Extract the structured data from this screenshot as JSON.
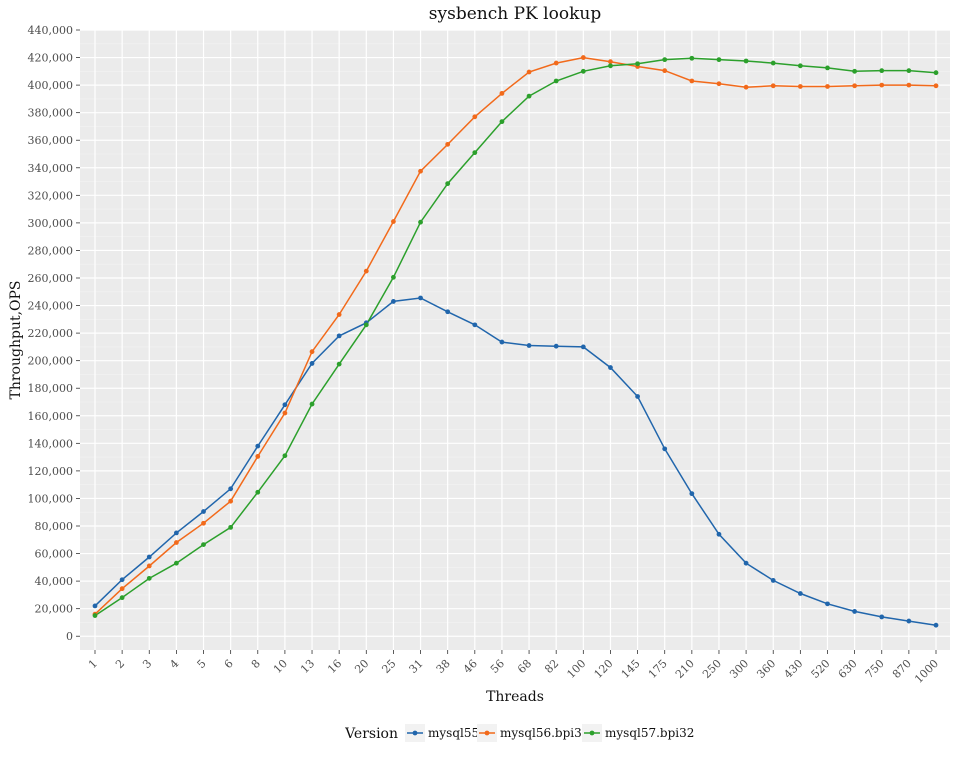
{
  "chart_data": {
    "type": "line",
    "title": "sysbench PK lookup",
    "xlabel": "Threads",
    "ylabel": "Throughput,OPS",
    "ylim": [
      -10000,
      440000
    ],
    "y_ticks": [
      0,
      20000,
      40000,
      60000,
      80000,
      100000,
      120000,
      140000,
      160000,
      180000,
      200000,
      220000,
      240000,
      260000,
      280000,
      300000,
      320000,
      340000,
      360000,
      380000,
      400000,
      420000,
      440000
    ],
    "y_tick_labels": [
      "0",
      "20,000",
      "40,000",
      "60,000",
      "80,000",
      "100,000",
      "120,000",
      "140,000",
      "160,000",
      "180,000",
      "200,000",
      "220,000",
      "240,000",
      "260,000",
      "280,000",
      "300,000",
      "320,000",
      "340,000",
      "360,000",
      "380,000",
      "400,000",
      "420,000",
      "440,000"
    ],
    "x_scale": "categorical",
    "categories": [
      "1",
      "2",
      "3",
      "4",
      "5",
      "6",
      "8",
      "10",
      "13",
      "16",
      "20",
      "25",
      "31",
      "38",
      "46",
      "56",
      "68",
      "82",
      "100",
      "120",
      "145",
      "175",
      "210",
      "250",
      "300",
      "360",
      "430",
      "520",
      "630",
      "750",
      "870",
      "1000"
    ],
    "grid": true,
    "legend": {
      "title": "Version",
      "position": "bottom"
    },
    "series": [
      {
        "name": "mysql55",
        "color": "#2166ac",
        "values": [
          22000,
          41000,
          57500,
          75000,
          90500,
          107000,
          138000,
          168000,
          198000,
          218000,
          227500,
          243000,
          245500,
          235500,
          226000,
          213500,
          211000,
          210500,
          210000,
          195000,
          174000,
          136000,
          103500,
          74000,
          53000,
          40500,
          31000,
          23500,
          18000,
          14000,
          11000,
          8000
        ]
      },
      {
        "name": "mysql56.bpi32",
        "color": "#f26a1b",
        "values": [
          16000,
          34500,
          51000,
          68000,
          82000,
          98000,
          130500,
          162000,
          206500,
          233500,
          265000,
          301000,
          337500,
          357000,
          377000,
          394000,
          409500,
          416000,
          420000,
          417000,
          413500,
          410500,
          403000,
          401000,
          398500,
          399500,
          399000,
          399000,
          399500,
          400000,
          400000,
          399500
        ]
      },
      {
        "name": "mysql57.bpi32",
        "color": "#2ca02c",
        "values": [
          15000,
          28000,
          42000,
          53000,
          66500,
          79000,
          104500,
          131000,
          168500,
          197500,
          226000,
          260500,
          300500,
          328500,
          351000,
          373500,
          392000,
          403000,
          410000,
          414000,
          415500,
          418500,
          419500,
          418500,
          417500,
          416000,
          414000,
          412500,
          410000,
          410500,
          410500,
          409000
        ]
      }
    ]
  }
}
